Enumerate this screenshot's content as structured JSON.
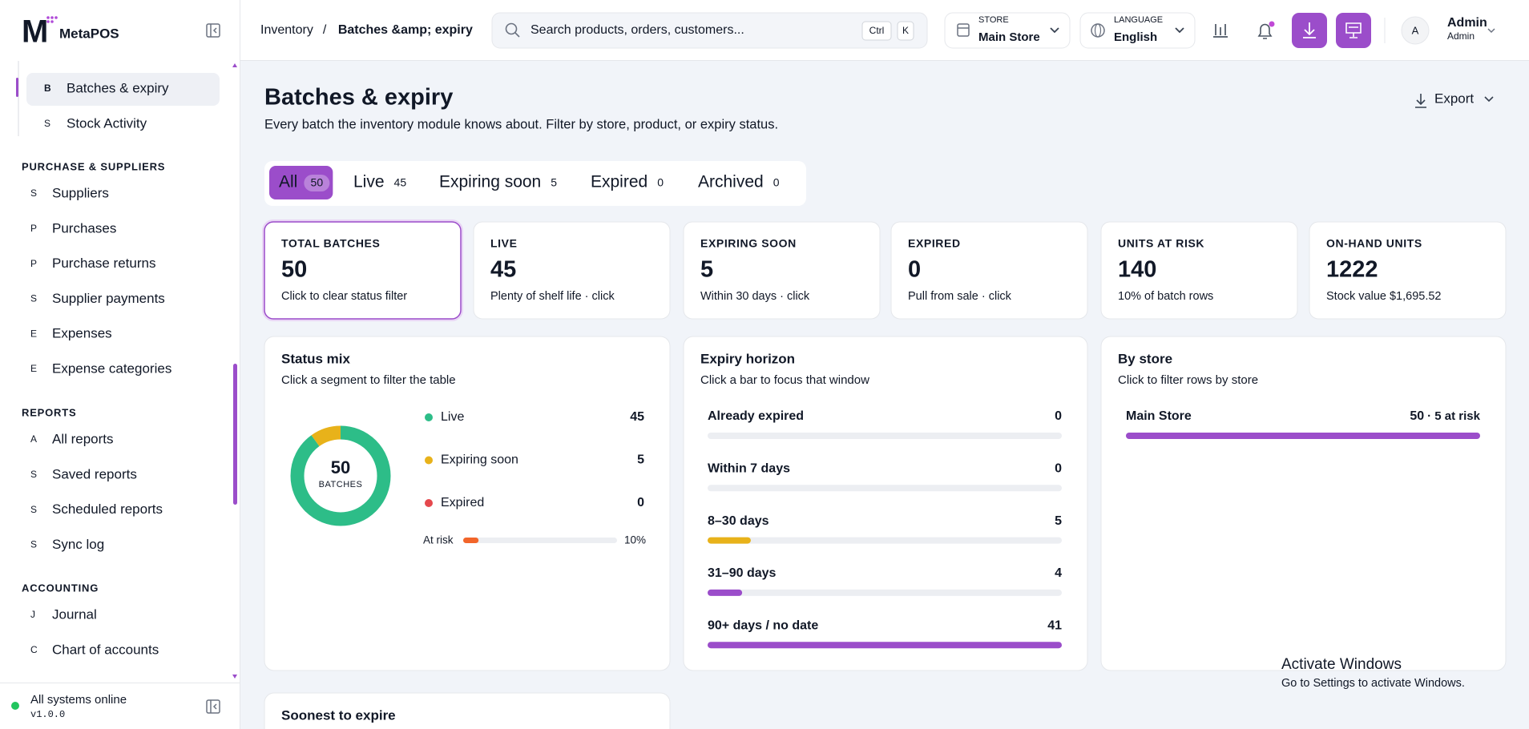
{
  "sidebar": {
    "brand": "MetaPOS",
    "active_item": {
      "icon": "B",
      "label": "Batches & expiry"
    },
    "items_top": [
      {
        "icon": "S",
        "label": "Stock Activity"
      }
    ],
    "sections": [
      {
        "title": "PURCHASE & SUPPLIERS",
        "items": [
          {
            "icon": "S",
            "label": "Suppliers"
          },
          {
            "icon": "P",
            "label": "Purchases"
          },
          {
            "icon": "P",
            "label": "Purchase returns"
          },
          {
            "icon": "S",
            "label": "Supplier payments"
          },
          {
            "icon": "E",
            "label": "Expenses"
          },
          {
            "icon": "E",
            "label": "Expense categories"
          }
        ]
      },
      {
        "title": "REPORTS",
        "items": [
          {
            "icon": "A",
            "label": "All reports"
          },
          {
            "icon": "S",
            "label": "Saved reports"
          },
          {
            "icon": "S",
            "label": "Scheduled reports"
          },
          {
            "icon": "S",
            "label": "Sync log"
          }
        ]
      },
      {
        "title": "ACCOUNTING",
        "items": [
          {
            "icon": "J",
            "label": "Journal"
          },
          {
            "icon": "C",
            "label": "Chart of accounts"
          }
        ]
      }
    ],
    "status": "All systems online",
    "version": "v1.0.0"
  },
  "header": {
    "breadcrumb": [
      "Inventory",
      "Batches &amp; expiry"
    ],
    "search_placeholder": "Search products, orders, customers...",
    "shortcut": [
      "Ctrl",
      "K"
    ],
    "store": {
      "label": "STORE",
      "value": "Main Store"
    },
    "language": {
      "label": "LANGUAGE",
      "value": "English"
    },
    "user": {
      "avatar": "A",
      "name": "Admin",
      "role": "Admin"
    }
  },
  "page": {
    "title": "Batches & expiry",
    "subtitle": "Every batch the inventory module knows about. Filter by store, product, or expiry status.",
    "export": "Export"
  },
  "tabs": [
    {
      "label": "All",
      "count": 50,
      "active": true
    },
    {
      "label": "Live",
      "count": 45
    },
    {
      "label": "Expiring soon",
      "count": 5
    },
    {
      "label": "Expired",
      "count": 0
    },
    {
      "label": "Archived",
      "count": 0
    }
  ],
  "kpis": [
    {
      "label": "TOTAL BATCHES",
      "value": 50,
      "note": "Click to clear status filter",
      "color": "#111827",
      "active": true
    },
    {
      "label": "LIVE",
      "value": 45,
      "note": "Plenty of shelf life · click",
      "color": "#22b07d"
    },
    {
      "label": "EXPIRING SOON",
      "value": 5,
      "note": "Within 30 days · click",
      "color": "#e3a90f"
    },
    {
      "label": "EXPIRED",
      "value": 0,
      "note": "Pull from sale · click",
      "color": "#e5484d"
    },
    {
      "label": "UNITS AT RISK",
      "value": 140,
      "note": "10% of batch rows",
      "color": "#9b4dca"
    },
    {
      "label": "ON-HAND UNITS",
      "value": 1222,
      "note": "Stock value $1,695.52",
      "color": "#111827"
    }
  ],
  "status_mix": {
    "title": "Status mix",
    "subtitle": "Click a segment to filter the table",
    "total": 50,
    "center_label": "BATCHES",
    "segments": [
      {
        "name": "Live",
        "value": 45,
        "color": "#2dbd88"
      },
      {
        "name": "Expiring soon",
        "value": 5,
        "color": "#e8b21a"
      },
      {
        "name": "Expired",
        "value": 0,
        "color": "#e5484d"
      }
    ],
    "at_risk": {
      "label": "At risk",
      "value": 10,
      "value_label": "10%"
    }
  },
  "expiry_horizon": {
    "title": "Expiry horizon",
    "subtitle": "Click a bar to focus that window",
    "rows": [
      {
        "label": "Already expired",
        "value": 0,
        "color": "#e5484d"
      },
      {
        "label": "Within 7 days",
        "value": 0,
        "color": "#e8b21a"
      },
      {
        "label": "8–30 days",
        "value": 5,
        "color": "#e8b21a"
      },
      {
        "label": "31–90 days",
        "value": 4,
        "color": "#9b4dca"
      },
      {
        "label": "90+ days / no date",
        "value": 41,
        "color": "#9b4dca"
      }
    ]
  },
  "by_store": {
    "title": "By store",
    "subtitle": "Click to filter rows by store",
    "rows": [
      {
        "name": "Main Store",
        "value": 50,
        "note": "· 5 at risk",
        "color": "#9b4dca"
      }
    ]
  },
  "soonest": {
    "title": "Soonest to expire"
  },
  "watermark": {
    "title": "Activate Windows",
    "text": "Go to Settings to activate Windows."
  }
}
